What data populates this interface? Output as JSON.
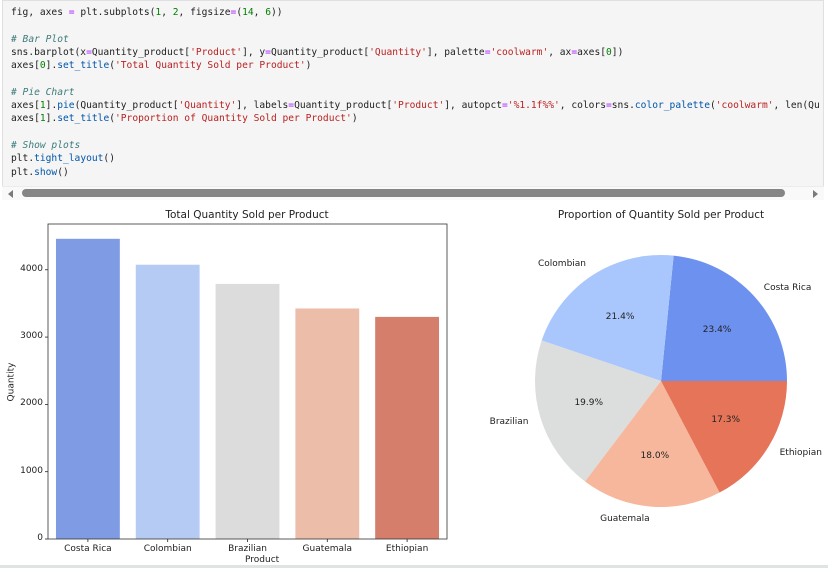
{
  "code_cell": {
    "lines": [
      [
        {
          "t": "fig, axes ",
          "c": ""
        },
        {
          "t": "=",
          "c": "op"
        },
        {
          "t": " plt.subplots(",
          "c": ""
        },
        {
          "t": "1",
          "c": "num"
        },
        {
          "t": ", ",
          "c": ""
        },
        {
          "t": "2",
          "c": "num"
        },
        {
          "t": ", figsize",
          "c": ""
        },
        {
          "t": "=",
          "c": "op"
        },
        {
          "t": "(",
          "c": ""
        },
        {
          "t": "14",
          "c": "num"
        },
        {
          "t": ", ",
          "c": ""
        },
        {
          "t": "6",
          "c": "num"
        },
        {
          "t": "))",
          "c": ""
        }
      ],
      [],
      [
        {
          "t": "# Bar Plot",
          "c": "cm"
        }
      ],
      [
        {
          "t": "sns.barplot(x",
          "c": ""
        },
        {
          "t": "=",
          "c": "op"
        },
        {
          "t": "Quantity_product[",
          "c": ""
        },
        {
          "t": "'Product'",
          "c": "str"
        },
        {
          "t": "], y",
          "c": ""
        },
        {
          "t": "=",
          "c": "op"
        },
        {
          "t": "Quantity_product[",
          "c": ""
        },
        {
          "t": "'Quantity'",
          "c": "str"
        },
        {
          "t": "], palette",
          "c": ""
        },
        {
          "t": "=",
          "c": "op"
        },
        {
          "t": "'coolwarm'",
          "c": "str"
        },
        {
          "t": ", ax",
          "c": ""
        },
        {
          "t": "=",
          "c": "op"
        },
        {
          "t": "axes[",
          "c": ""
        },
        {
          "t": "0",
          "c": "num"
        },
        {
          "t": "])",
          "c": ""
        }
      ],
      [
        {
          "t": "axes[",
          "c": ""
        },
        {
          "t": "0",
          "c": "num"
        },
        {
          "t": "].",
          "c": ""
        },
        {
          "t": "set_title",
          "c": "fn"
        },
        {
          "t": "(",
          "c": ""
        },
        {
          "t": "'Total Quantity Sold per Product'",
          "c": "str"
        },
        {
          "t": ")",
          "c": ""
        }
      ],
      [],
      [
        {
          "t": "# Pie Chart",
          "c": "cm"
        }
      ],
      [
        {
          "t": "axes[",
          "c": ""
        },
        {
          "t": "1",
          "c": "num"
        },
        {
          "t": "].",
          "c": ""
        },
        {
          "t": "pie",
          "c": "fn"
        },
        {
          "t": "(Quantity_product[",
          "c": ""
        },
        {
          "t": "'Quantity'",
          "c": "str"
        },
        {
          "t": "], labels",
          "c": ""
        },
        {
          "t": "=",
          "c": "op"
        },
        {
          "t": "Quantity_product[",
          "c": ""
        },
        {
          "t": "'Product'",
          "c": "str"
        },
        {
          "t": "], autopct",
          "c": ""
        },
        {
          "t": "=",
          "c": "op"
        },
        {
          "t": "'%1.1f%%'",
          "c": "str"
        },
        {
          "t": ", colors",
          "c": ""
        },
        {
          "t": "=",
          "c": "op"
        },
        {
          "t": "sns.",
          "c": ""
        },
        {
          "t": "color_palette",
          "c": "fn"
        },
        {
          "t": "(",
          "c": ""
        },
        {
          "t": "'coolwarm'",
          "c": "str"
        },
        {
          "t": ", len(Quantity_product",
          "c": ""
        }
      ],
      [
        {
          "t": "axes[",
          "c": ""
        },
        {
          "t": "1",
          "c": "num"
        },
        {
          "t": "].",
          "c": ""
        },
        {
          "t": "set_title",
          "c": "fn"
        },
        {
          "t": "(",
          "c": ""
        },
        {
          "t": "'Proportion of Quantity Sold per Product'",
          "c": "str"
        },
        {
          "t": ")",
          "c": ""
        }
      ],
      [],
      [
        {
          "t": "# Show plots",
          "c": "cm"
        }
      ],
      [
        {
          "t": "plt.",
          "c": ""
        },
        {
          "t": "tight_layout",
          "c": "fn"
        },
        {
          "t": "()",
          "c": ""
        }
      ],
      [
        {
          "t": "plt.",
          "c": ""
        },
        {
          "t": "show",
          "c": "fn"
        },
        {
          "t": "()",
          "c": ""
        }
      ]
    ]
  },
  "chart_data": [
    {
      "type": "bar",
      "title": "Total Quantity Sold per Product",
      "xlabel": "Product",
      "ylabel": "Quantity",
      "categories": [
        "Costa Rica",
        "Colombian",
        "Brazilian",
        "Guatemala",
        "Ethiopian"
      ],
      "values": [
        4460,
        4075,
        3790,
        3425,
        3300
      ],
      "colors": [
        "#7f9be3",
        "#b5cbf3",
        "#dcdcdc",
        "#ecbda9",
        "#d47e6b"
      ],
      "yticks": [
        0,
        1000,
        2000,
        3000,
        4000
      ],
      "ylim": [
        0,
        4680
      ],
      "grid": false
    },
    {
      "type": "pie",
      "title": "Proportion of Quantity Sold per Product",
      "labels": [
        "Costa Rica",
        "Colombian",
        "Brazilian",
        "Guatemala",
        "Ethiopian"
      ],
      "percentages": [
        23.4,
        21.4,
        19.9,
        18.0,
        17.3
      ],
      "pct_labels": [
        "23.4%",
        "21.4%",
        "19.9%",
        "18.0%",
        "17.3%"
      ],
      "colors": [
        "#6d91ef",
        "#aac7fd",
        "#dcdddd",
        "#f6b79c",
        "#e57458"
      ],
      "startangle": 0
    }
  ]
}
